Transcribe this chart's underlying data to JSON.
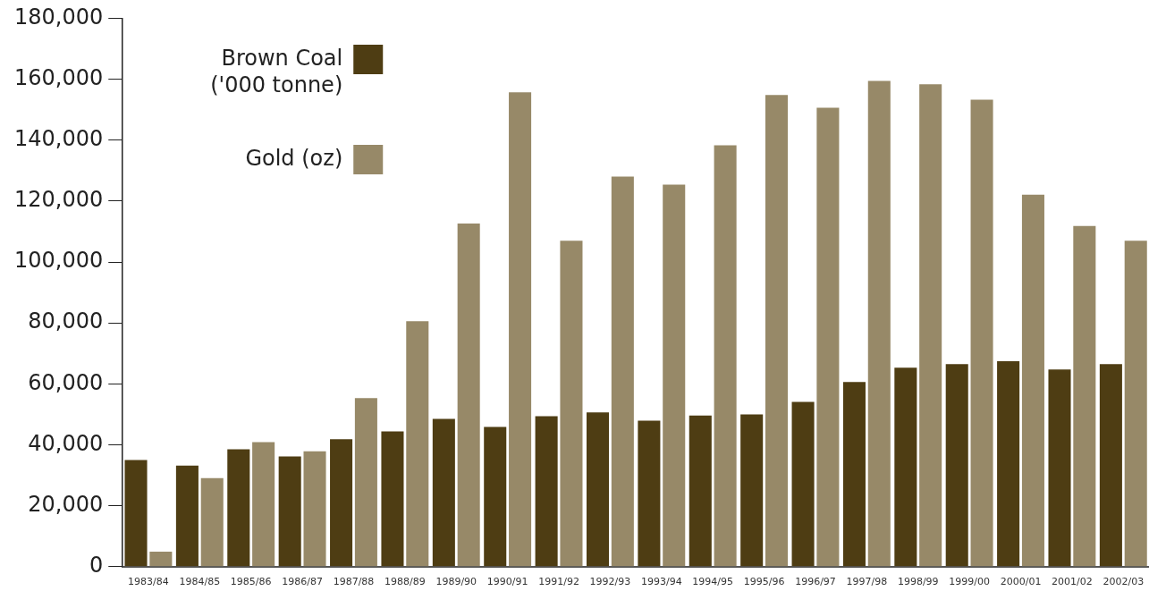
{
  "chart_data": {
    "type": "bar",
    "categories": [
      "1983/84",
      "1984/85",
      "1985/86",
      "1986/87",
      "1987/88",
      "1988/89",
      "1989/90",
      "1990/91",
      "1991/92",
      "1992/93",
      "1993/94",
      "1994/95",
      "1995/96",
      "1996/97",
      "1997/98",
      "1998/99",
      "1999/00",
      "2000/01",
      "2001/02",
      "2002/03"
    ],
    "series": [
      {
        "name": "Brown Coal ('000 tonne)",
        "color": "#4e3d13",
        "values": [
          35000,
          33200,
          38500,
          36200,
          41800,
          44400,
          48500,
          45900,
          49400,
          50600,
          47900,
          49600,
          50000,
          54100,
          60600,
          65300,
          66500,
          67400,
          64700,
          66500
        ]
      },
      {
        "name": "Gold (oz)",
        "color": "#978968",
        "values": [
          4900,
          29100,
          40900,
          37900,
          55300,
          80600,
          112600,
          155700,
          107000,
          128000,
          125400,
          138300,
          154800,
          150600,
          159400,
          158300,
          153300,
          122100,
          111800,
          107000
        ]
      }
    ],
    "ylim": [
      0,
      180000
    ],
    "yticks": [
      {
        "value": 0,
        "label": "0"
      },
      {
        "value": 20000,
        "label": "20,000"
      },
      {
        "value": 40000,
        "label": "40,000"
      },
      {
        "value": 60000,
        "label": "60,000"
      },
      {
        "value": 80000,
        "label": "80,000"
      },
      {
        "value": 100000,
        "label": "100,000"
      },
      {
        "value": 120000,
        "label": "120,000"
      },
      {
        "value": 140000,
        "label": "140,000"
      },
      {
        "value": 160000,
        "label": "160,000"
      },
      {
        "value": 180000,
        "label": "180,000"
      }
    ],
    "grid": false,
    "legend": "top left"
  }
}
